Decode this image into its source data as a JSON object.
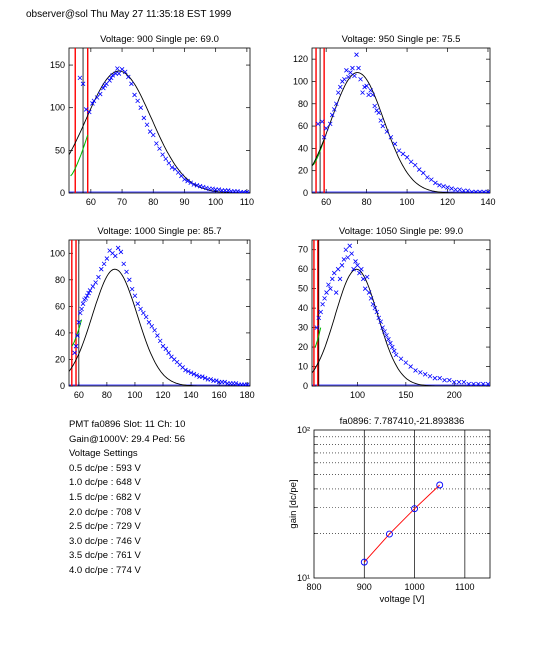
{
  "header": "observer@sol Thu May 27 11:35:18 EST 1999",
  "info": {
    "pmt_line": "PMT fa0896 Slot: 11 Ch: 10",
    "gain_line": "Gain@1000V: 29.4 Ped: 56",
    "settings_title": "Voltage Settings",
    "settings": [
      "0.5 dc/pe : 593 V",
      "1.0 dc/pe : 648 V",
      "1.5 dc/pe : 682 V",
      "2.0 dc/pe : 708 V",
      "2.5 dc/pe : 729 V",
      "3.0 dc/pe : 746 V",
      "3.5 dc/pe : 761 V",
      "4.0 dc/pe : 774 V"
    ]
  },
  "colors": {
    "data": "#0000ff",
    "fit": "#000000",
    "pedestal": "#ff0000",
    "low_fit": "#00bb00",
    "gain_line": "#ff0000",
    "gain_markers": "#0000ff"
  },
  "chart_data": [
    {
      "type": "scatter",
      "title": "Voltage: 900 Single pe: 69.0",
      "xlim": [
        53,
        111
      ],
      "ylim": [
        0,
        170
      ],
      "xticks": [
        60,
        70,
        80,
        90,
        100,
        110
      ],
      "yticks": [
        0,
        50,
        100,
        150
      ],
      "pedestal_x": [
        55,
        59
      ],
      "cut_x": 57.5,
      "fit": {
        "mu": 69.0,
        "sigma": 10.5,
        "amp": 143
      },
      "low_fit": {
        "x0": 53.5,
        "y0": 20,
        "x1": 59,
        "y1": 68
      },
      "x": [
        56.5,
        57.5,
        58.5,
        59.5,
        60.5,
        61,
        62,
        63,
        64,
        64.5,
        65,
        66,
        66.5,
        67,
        68,
        68.5,
        69,
        70,
        71,
        72,
        73,
        74,
        75,
        76,
        77,
        78,
        79,
        80,
        81,
        82,
        83,
        84,
        85,
        86,
        87,
        88,
        89,
        90,
        91,
        92,
        93,
        94,
        95,
        96,
        97,
        98,
        99,
        100,
        101,
        102,
        103,
        104,
        105,
        106,
        107,
        108,
        109,
        110
      ],
      "y": [
        135,
        128,
        98,
        95,
        105,
        108,
        112,
        116,
        123,
        126,
        128,
        132,
        135,
        138,
        140,
        146,
        140,
        145,
        142,
        136,
        128,
        115,
        108,
        100,
        88,
        80,
        72,
        68,
        58,
        52,
        45,
        40,
        35,
        30,
        28,
        24,
        20,
        16,
        14,
        12,
        10,
        9,
        8,
        7,
        6,
        5,
        5,
        4,
        4,
        3,
        3,
        3,
        2,
        2,
        2,
        1,
        1,
        1
      ]
    },
    {
      "type": "scatter",
      "title": "Voltage: 950 Single pe: 75.5",
      "xlim": [
        53,
        141
      ],
      "ylim": [
        0,
        130
      ],
      "xticks": [
        60,
        80,
        100,
        120,
        140
      ],
      "yticks": [
        0,
        20,
        40,
        60,
        80,
        100,
        120
      ],
      "pedestal_x": [
        55,
        59
      ],
      "cut_x": 57,
      "fit": {
        "mu": 75.5,
        "sigma": 13.0,
        "amp": 108
      },
      "low_fit": {
        "x0": 53.5,
        "y0": 25,
        "x1": 59,
        "y1": 48
      },
      "x": [
        56,
        58,
        59,
        60,
        62,
        63,
        64,
        65,
        66,
        67,
        68,
        69,
        70,
        71,
        72,
        73,
        74,
        75,
        76,
        77,
        78,
        79,
        80,
        81,
        82,
        83,
        84,
        85,
        86,
        87,
        88,
        90,
        92,
        94,
        96,
        98,
        100,
        102,
        104,
        106,
        108,
        110,
        112,
        114,
        116,
        118,
        120,
        122,
        124,
        126,
        128,
        130,
        132,
        134,
        136,
        138,
        140
      ],
      "y": [
        62,
        64,
        50,
        58,
        62,
        70,
        75,
        80,
        90,
        95,
        100,
        102,
        110,
        104,
        108,
        112,
        105,
        124,
        112,
        102,
        90,
        95,
        96,
        88,
        92,
        88,
        78,
        74,
        72,
        65,
        60,
        55,
        50,
        44,
        38,
        35,
        32,
        28,
        25,
        21,
        18,
        14,
        12,
        9,
        7,
        6,
        5,
        4,
        3,
        3,
        2,
        2,
        1,
        1,
        1,
        1,
        1
      ]
    },
    {
      "type": "scatter",
      "title": "Voltage: 1000 Single pe: 85.7",
      "xlim": [
        53,
        182
      ],
      "ylim": [
        0,
        110
      ],
      "xticks": [
        60,
        80,
        100,
        120,
        140,
        160,
        180
      ],
      "yticks": [
        0,
        20,
        40,
        60,
        80,
        100
      ],
      "pedestal_x": [
        55,
        58
      ],
      "cut_x": 60,
      "fit": {
        "mu": 85.7,
        "sigma": 16.0,
        "amp": 88
      },
      "low_fit": {
        "x0": 55,
        "y0": 30,
        "x1": 62,
        "y1": 50
      },
      "x": [
        57,
        58,
        59,
        60,
        61,
        62,
        63,
        64,
        65,
        66,
        67,
        68,
        70,
        72,
        74,
        76,
        78,
        80,
        82,
        84,
        86,
        88,
        90,
        92,
        94,
        96,
        98,
        100,
        102,
        104,
        106,
        108,
        110,
        112,
        114,
        116,
        118,
        120,
        122,
        124,
        126,
        128,
        130,
        132,
        134,
        136,
        138,
        140,
        142,
        144,
        146,
        148,
        150,
        152,
        154,
        156,
        158,
        160,
        162,
        164,
        166,
        168,
        170,
        172,
        174,
        176,
        178,
        180
      ],
      "y": [
        25,
        30,
        38,
        48,
        55,
        58,
        62,
        65,
        66,
        68,
        70,
        72,
        75,
        78,
        82,
        88,
        92,
        96,
        102,
        100,
        98,
        104,
        101,
        92,
        86,
        80,
        73,
        68,
        62,
        58,
        55,
        52,
        48,
        45,
        42,
        38,
        34,
        30,
        28,
        25,
        22,
        20,
        18,
        16,
        14,
        12,
        11,
        10,
        9,
        8,
        7,
        7,
        6,
        5,
        5,
        4,
        4,
        3,
        3,
        3,
        2,
        2,
        2,
        2,
        1,
        1,
        1,
        1
      ]
    },
    {
      "type": "scatter",
      "title": "Voltage: 1050 Single pe: 99.0",
      "xlim": [
        53,
        237
      ],
      "ylim": [
        0,
        75
      ],
      "xticks": [
        100,
        150,
        200
      ],
      "yticks": [
        0,
        10,
        20,
        30,
        40,
        50,
        60,
        70
      ],
      "pedestal_x": [
        55,
        59
      ],
      "cut_x": 60,
      "fit": {
        "mu": 99.0,
        "sigma": 22.0,
        "amp": 60
      },
      "low_fit": {
        "x0": 56,
        "y0": 20,
        "x1": 62,
        "y1": 30
      },
      "x": [
        58,
        60,
        62,
        64,
        66,
        68,
        70,
        72,
        74,
        76,
        78,
        80,
        82,
        84,
        86,
        88,
        90,
        92,
        94,
        96,
        98,
        100,
        102,
        104,
        106,
        108,
        110,
        112,
        114,
        116,
        118,
        120,
        122,
        124,
        126,
        128,
        130,
        132,
        134,
        136,
        138,
        140,
        145,
        150,
        155,
        160,
        165,
        170,
        175,
        180,
        185,
        190,
        195,
        200,
        205,
        210,
        215,
        220,
        225,
        230,
        235
      ],
      "y": [
        30,
        35,
        38,
        42,
        45,
        48,
        52,
        50,
        55,
        58,
        48,
        60,
        55,
        62,
        65,
        70,
        66,
        72,
        68,
        60,
        64,
        62,
        58,
        60,
        55,
        50,
        56,
        48,
        45,
        42,
        40,
        38,
        35,
        33,
        30,
        28,
        26,
        24,
        22,
        20,
        18,
        16,
        14,
        12,
        10,
        8,
        7,
        6,
        5,
        4,
        4,
        3,
        3,
        2,
        2,
        2,
        1,
        1,
        1,
        1,
        1
      ]
    },
    {
      "type": "line",
      "title": "fa0896: 7.787410,-21.893836",
      "xlabel": "voltage [V]",
      "ylabel": "gain [dc/pe]",
      "xlim": [
        800,
        1150
      ],
      "ylim": [
        10,
        100
      ],
      "yscale": "log",
      "xticks": [
        800,
        900,
        1000,
        1100
      ],
      "ytick_labels": [
        "10¹",
        "10²"
      ],
      "grid": true,
      "x": [
        900,
        950,
        1000,
        1050
      ],
      "y": [
        12.8,
        19.8,
        29.4,
        42.5
      ]
    }
  ]
}
